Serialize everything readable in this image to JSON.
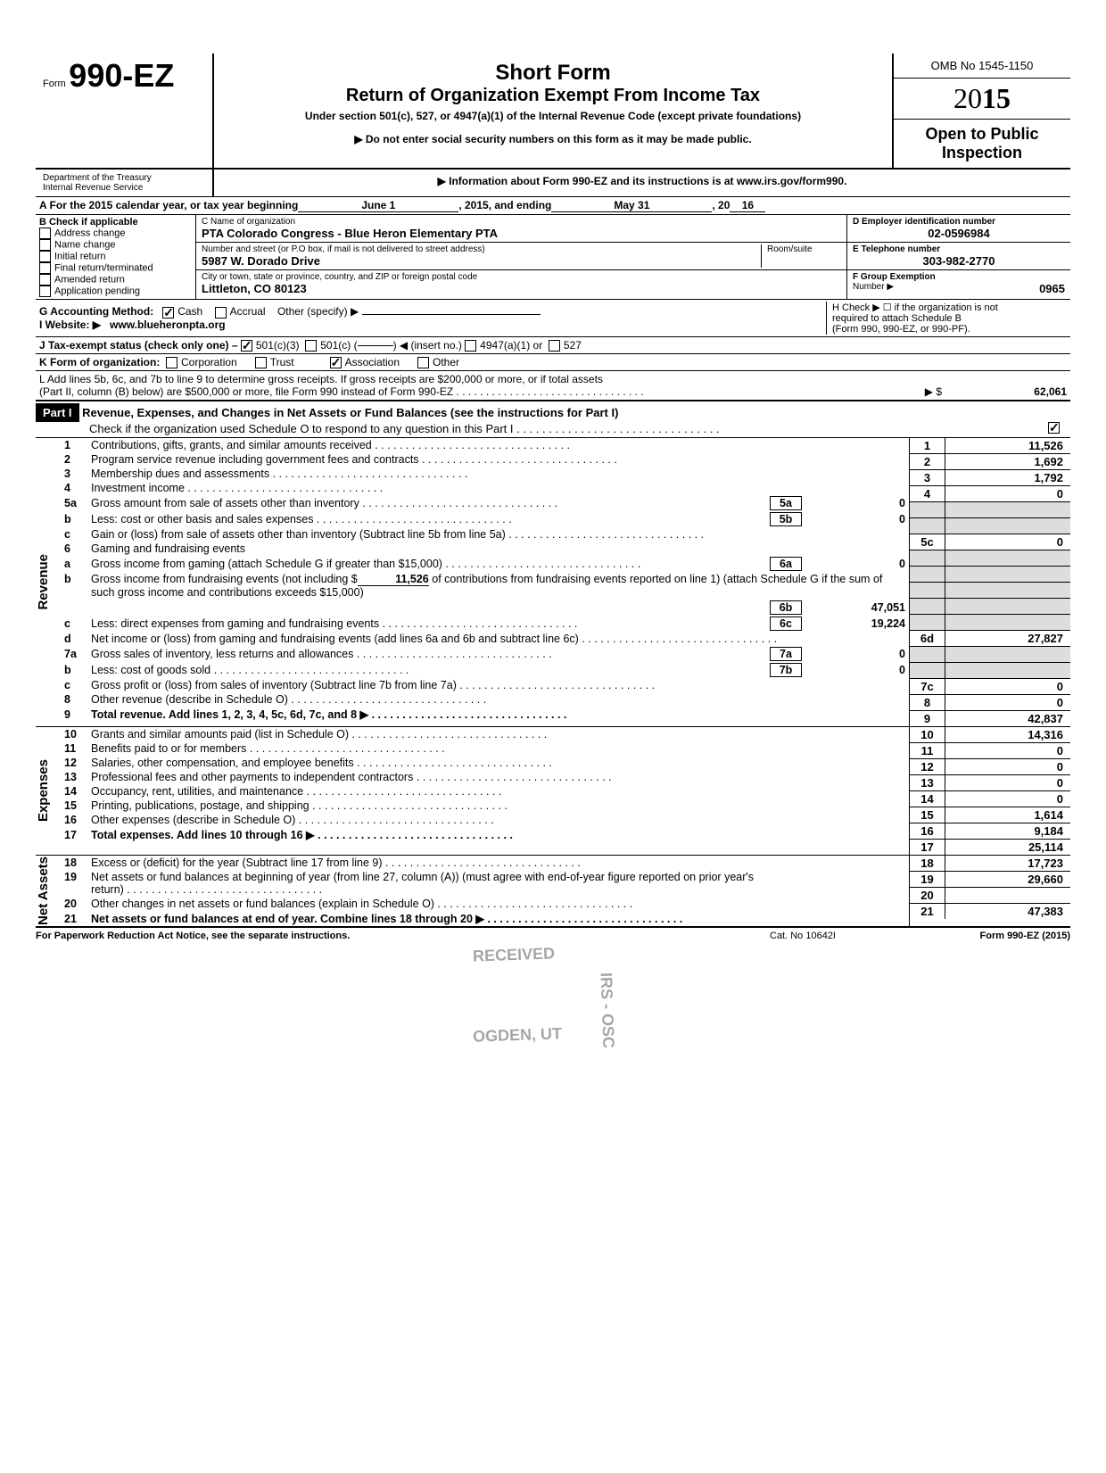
{
  "form": {
    "number_prefix": "Form",
    "number": "990-EZ",
    "title1": "Short Form",
    "title2": "Return of Organization Exempt From Income Tax",
    "subtitle": "Under section 501(c), 527, or 4947(a)(1) of the Internal Revenue Code (except private foundations)",
    "instr1": "▶ Do not enter social security numbers on this form as it may be made public.",
    "instr2": "▶ Information about Form 990-EZ and its instructions is at www.irs.gov/form990.",
    "dept": "Department of the Treasury\nInternal Revenue Service",
    "omb": "OMB No 1545-1150",
    "year_light": "20",
    "year_bold": "15",
    "open": "Open to Public Inspection"
  },
  "A": {
    "prefix": "A For the 2015 calendar year, or tax year beginning",
    "begin": "June 1",
    "mid": ", 2015, and ending",
    "end": "May 31",
    "suffix1": ", 20",
    "suffix2": "16"
  },
  "B": {
    "label": "B Check if applicable",
    "items": [
      "Address change",
      "Name change",
      "Initial return",
      "Final return/terminated",
      "Amended return",
      "Application pending"
    ]
  },
  "C": {
    "name_label": "C  Name of organization",
    "name": "PTA Colorado Congress - Blue Heron Elementary PTA",
    "street_label": "Number and street (or P.O box, if mail is not delivered to street address)",
    "room_label": "Room/suite",
    "street": "5987 W. Dorado Drive",
    "city_label": "City or town, state or province, country, and ZIP or foreign postal code",
    "city": "Littleton, CO 80123"
  },
  "D": {
    "label": "D Employer identification number",
    "val": "02-0596984"
  },
  "E": {
    "label": "E Telephone number",
    "val": "303-982-2770"
  },
  "F": {
    "label": "F Group Exemption",
    "label2": "Number ▶",
    "val": "0965"
  },
  "G": {
    "label": "G Accounting Method:",
    "cash": "Cash",
    "accrual": "Accrual",
    "other": "Other (specify) ▶",
    "cash_checked": true
  },
  "H": {
    "line1": "H Check ▶ ☐ if the organization is not",
    "line2": "required to attach Schedule B",
    "line3": "(Form 990, 990-EZ, or 990-PF)."
  },
  "I": {
    "label": "I  Website: ▶",
    "val": "www.blueheronpta.org"
  },
  "J": {
    "label": "J Tax-exempt status (check only one) –",
    "opt1": "501(c)(3)",
    "opt2": "501(c) (",
    "insert": "◀ (insert no.)",
    "opt3": "4947(a)(1) or",
    "opt4": "527",
    "opt1_checked": true
  },
  "K": {
    "label": "K Form of organization:",
    "opts": [
      "Corporation",
      "Trust",
      "Association",
      "Other"
    ],
    "checked_index": 2
  },
  "L": {
    "text1": "L Add lines 5b, 6c, and 7b to line 9 to determine gross receipts. If gross receipts are $200,000 or more, or if total assets",
    "text2": "(Part II, column (B) below) are $500,000 or more, file Form 990 instead of Form 990-EZ",
    "arrow": "▶  $",
    "val": "62,061"
  },
  "part1": {
    "label": "Part I",
    "title": "Revenue, Expenses, and Changes in Net Assets or Fund Balances (see the instructions for Part I)",
    "check_text": "Check if the organization used Schedule O to respond to any question in this Part I",
    "check": true
  },
  "revenue_label": "Revenue",
  "expenses_label": "Expenses",
  "netassets_label": "Net Assets",
  "lines": {
    "1": {
      "n": "1",
      "t": "Contributions, gifts, grants, and similar amounts received",
      "box": "1",
      "v": "11,526"
    },
    "2": {
      "n": "2",
      "t": "Program service revenue including government fees and contracts",
      "box": "2",
      "v": "1,692"
    },
    "3": {
      "n": "3",
      "t": "Membership dues and assessments",
      "box": "3",
      "v": "1,792"
    },
    "4": {
      "n": "4",
      "t": "Investment income",
      "box": "4",
      "v": "0"
    },
    "5a": {
      "n": "5a",
      "t": "Gross amount from sale of assets other than inventory",
      "sb": "5a",
      "sv": "0"
    },
    "5b": {
      "n": "b",
      "t": "Less: cost or other basis and sales expenses",
      "sb": "5b",
      "sv": "0"
    },
    "5c": {
      "n": "c",
      "t": "Gain or (loss) from sale of assets other than inventory (Subtract line 5b from line 5a)",
      "box": "5c",
      "v": "0"
    },
    "6": {
      "n": "6",
      "t": "Gaming and fundraising events"
    },
    "6a": {
      "n": "a",
      "t": "Gross income from gaming (attach Schedule G if greater than $15,000)",
      "sb": "6a",
      "sv": "0"
    },
    "6b": {
      "n": "b",
      "t1": "Gross income from fundraising events (not including  $",
      "contrib": "11,526",
      "t2": "of contributions from fundraising events reported on line 1) (attach Schedule G if the sum of such gross income and contributions exceeds $15,000)",
      "sb": "6b",
      "sv": "47,051"
    },
    "6c": {
      "n": "c",
      "t": "Less: direct expenses from gaming and fundraising events",
      "sb": "6c",
      "sv": "19,224"
    },
    "6d": {
      "n": "d",
      "t": "Net income or (loss) from gaming and fundraising events (add lines 6a and 6b and subtract line 6c)",
      "box": "6d",
      "v": "27,827"
    },
    "7a": {
      "n": "7a",
      "t": "Gross sales of inventory, less returns and allowances",
      "sb": "7a",
      "sv": "0"
    },
    "7b": {
      "n": "b",
      "t": "Less: cost of goods sold",
      "sb": "7b",
      "sv": "0"
    },
    "7c": {
      "n": "c",
      "t": "Gross profit or (loss) from sales of inventory (Subtract line 7b from line 7a)",
      "box": "7c",
      "v": "0"
    },
    "8": {
      "n": "8",
      "t": "Other revenue (describe in Schedule O)",
      "box": "8",
      "v": "0"
    },
    "9": {
      "n": "9",
      "t": "Total revenue. Add lines 1, 2, 3, 4, 5c, 6d, 7c, and 8",
      "box": "9",
      "v": "42,837",
      "arrow": "▶"
    },
    "10": {
      "n": "10",
      "t": "Grants and similar amounts paid (list in Schedule O)",
      "box": "10",
      "v": "14,316"
    },
    "11": {
      "n": "11",
      "t": "Benefits paid to or for members",
      "box": "11",
      "v": "0"
    },
    "12": {
      "n": "12",
      "t": "Salaries, other compensation, and employee benefits",
      "box": "12",
      "v": "0"
    },
    "13": {
      "n": "13",
      "t": "Professional fees and other payments to independent contractors",
      "box": "13",
      "v": "0"
    },
    "14": {
      "n": "14",
      "t": "Occupancy, rent, utilities, and maintenance",
      "box": "14",
      "v": "0"
    },
    "15": {
      "n": "15",
      "t": "Printing, publications, postage, and shipping",
      "box": "15",
      "v": "1,614"
    },
    "16": {
      "n": "16",
      "t": "Other expenses (describe in Schedule O)",
      "box": "16",
      "v": "9,184"
    },
    "17": {
      "n": "17",
      "t": "Total expenses. Add lines 10 through 16",
      "box": "17",
      "v": "25,114",
      "arrow": "▶"
    },
    "18": {
      "n": "18",
      "t": "Excess or (deficit) for the year (Subtract line 17 from line 9)",
      "box": "18",
      "v": "17,723"
    },
    "19": {
      "n": "19",
      "t": "Net assets or fund balances at beginning of year (from line 27, column (A)) (must agree with end-of-year figure reported on prior year's return)",
      "box": "19",
      "v": "29,660"
    },
    "20": {
      "n": "20",
      "t": "Other changes in net assets or fund balances (explain in Schedule O)",
      "box": "20",
      "v": ""
    },
    "21": {
      "n": "21",
      "t": "Net assets or fund balances at end of year. Combine lines 18 through 20",
      "box": "21",
      "v": "47,383",
      "arrow": "▶"
    }
  },
  "footer": {
    "left": "For Paperwork Reduction Act Notice, see the separate instructions.",
    "center": "Cat. No  10642I",
    "right": "Form 990-EZ (2015)"
  },
  "stamp": {
    "t1": "RECEIVED",
    "t2": "OGDEN, UT",
    "t3": "IRS - OSC"
  }
}
